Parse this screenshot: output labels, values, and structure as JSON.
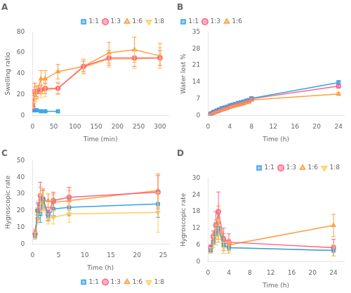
{
  "chart_data": [
    {
      "type": "line",
      "title": "A",
      "x_label": "Time (min)",
      "y_label": "Swelling ratio",
      "xlim": [
        0,
        320
      ],
      "ylim": [
        0,
        80
      ],
      "xticks": [
        0,
        50,
        100,
        150,
        200,
        250,
        300
      ],
      "yticks": [
        0,
        20,
        40,
        60,
        80
      ],
      "grid": false,
      "legend": "upper right",
      "series": [
        {
          "name": "1:1",
          "marker": "square",
          "x": [
            1,
            5,
            10,
            20,
            30,
            60
          ],
          "values": [
            5,
            5,
            5,
            4,
            4,
            4
          ],
          "yerr": [
            1.5,
            1,
            1,
            1,
            1,
            1
          ]
        },
        {
          "name": "1:3",
          "marker": "circle",
          "x": [
            1,
            5,
            10,
            20,
            30,
            60,
            120,
            180,
            240,
            300
          ],
          "values": [
            8,
            23,
            23,
            25,
            26,
            26,
            47,
            55,
            55,
            55
          ],
          "yerr": [
            3,
            8,
            5,
            4,
            5,
            5,
            5,
            7,
            8,
            7
          ]
        },
        {
          "name": "1:6",
          "marker": "triangle-up",
          "x": [
            1,
            5,
            10,
            20,
            30,
            60,
            120,
            180,
            240,
            300
          ],
          "values": [
            12,
            20,
            22,
            35,
            35,
            42,
            47,
            60,
            63,
            57
          ],
          "yerr": [
            4,
            7,
            6,
            8,
            8,
            7,
            7,
            10,
            12,
            12
          ]
        },
        {
          "name": "1:8",
          "marker": "triangle-down",
          "x": [
            1,
            5,
            10,
            20,
            30,
            60,
            120,
            180,
            240,
            300
          ],
          "values": [
            10,
            20,
            23,
            22,
            24,
            26,
            46,
            54,
            54,
            55
          ],
          "yerr": [
            3,
            7,
            6,
            5,
            6,
            6,
            6,
            8,
            9,
            10
          ]
        }
      ]
    },
    {
      "type": "line",
      "title": "B",
      "x_label": "Time (h)",
      "y_label": "Water lost %",
      "xlim": [
        0,
        25
      ],
      "ylim": [
        0,
        35
      ],
      "xticks": [
        0,
        4,
        8,
        12,
        16,
        20,
        24
      ],
      "yticks": [
        0,
        7,
        14,
        21,
        28,
        35
      ],
      "grid": false,
      "legend": "upper left",
      "series": [
        {
          "name": "1:1",
          "marker": "square",
          "x": [
            0.5,
            1,
            1.5,
            2,
            2.5,
            3,
            3.5,
            4,
            4.5,
            5,
            5.5,
            6,
            6.5,
            7,
            7.5,
            8,
            24
          ],
          "values": [
            0.8,
            1.5,
            2.0,
            2.5,
            3.0,
            3.3,
            3.7,
            4.2,
            4.5,
            4.8,
            5.2,
            5.5,
            5.8,
            6.2,
            6.5,
            7.2,
            13.8
          ],
          "yerr": [
            0.2,
            0.3,
            0.3,
            0.3,
            0.3,
            0.3,
            0.4,
            0.4,
            0.4,
            0.4,
            0.5,
            0.5,
            0.5,
            0.5,
            0.5,
            0.6,
            0.8
          ]
        },
        {
          "name": "1:3",
          "marker": "circle",
          "x": [
            0.5,
            1,
            1.5,
            2,
            2.5,
            3,
            3.5,
            4,
            4.5,
            5,
            5.5,
            6,
            6.5,
            7,
            7.5,
            8,
            24
          ],
          "values": [
            0.7,
            1.3,
            1.8,
            2.2,
            2.7,
            3.0,
            3.4,
            3.9,
            4.2,
            4.5,
            4.8,
            5.1,
            5.4,
            5.8,
            6.1,
            7.0,
            12.3
          ],
          "yerr": [
            0.2,
            0.2,
            0.3,
            0.3,
            0.3,
            0.3,
            0.3,
            0.4,
            0.4,
            0.4,
            0.4,
            0.4,
            0.5,
            0.5,
            0.5,
            0.5,
            0.8
          ]
        },
        {
          "name": "1:6",
          "marker": "triangle-up",
          "x": [
            0.5,
            1,
            1.5,
            2,
            2.5,
            3,
            3.5,
            4,
            4.5,
            5,
            5.5,
            6,
            6.5,
            7,
            7.5,
            8,
            24
          ],
          "values": [
            0.5,
            1.0,
            1.5,
            1.9,
            2.3,
            2.6,
            3.0,
            3.5,
            3.8,
            4.1,
            4.4,
            4.7,
            5.0,
            5.4,
            5.7,
            6.5,
            9.0
          ],
          "yerr": [
            0.1,
            0.2,
            0.2,
            0.2,
            0.2,
            0.3,
            0.3,
            0.3,
            0.3,
            0.3,
            0.4,
            0.4,
            0.4,
            0.4,
            0.4,
            0.5,
            0.6
          ]
        }
      ]
    },
    {
      "type": "line",
      "title": "C",
      "x_label": "Time (h)",
      "y_label": "Hygroscopic rate",
      "xlim": [
        0,
        26
      ],
      "ylim": [
        0,
        50
      ],
      "xticks": [
        0,
        5,
        10,
        15,
        20,
        25
      ],
      "yticks": [
        0,
        10,
        20,
        30,
        40,
        50
      ],
      "grid": false,
      "legend": "lower right",
      "series": [
        {
          "name": "1:1",
          "marker": "square",
          "x": [
            0.5,
            1,
            1.5,
            2,
            3,
            4,
            7,
            24
          ],
          "values": [
            5,
            20,
            18,
            27,
            17,
            21,
            22,
            24
          ],
          "yerr": [
            2,
            4,
            5,
            5,
            3,
            4,
            5,
            8
          ]
        },
        {
          "name": "1:3",
          "marker": "circle",
          "x": [
            0.5,
            1,
            1.5,
            2,
            3,
            4,
            7,
            24
          ],
          "values": [
            6,
            20,
            29,
            27,
            18,
            26,
            28,
            31
          ],
          "yerr": [
            2,
            5,
            8,
            6,
            4,
            5,
            6,
            10
          ]
        },
        {
          "name": "1:6",
          "marker": "triangle-up",
          "x": [
            0.5,
            1,
            1.5,
            2,
            3,
            4,
            7,
            24
          ],
          "values": [
            7,
            18,
            27,
            26,
            26,
            25,
            26,
            32
          ],
          "yerr": [
            2,
            4,
            7,
            6,
            4,
            5,
            6,
            10
          ]
        },
        {
          "name": "1:8",
          "marker": "triangle-down",
          "x": [
            0.5,
            1,
            1.5,
            2,
            3,
            4,
            7,
            24
          ],
          "values": [
            5,
            15,
            24,
            25,
            15,
            16,
            18,
            19
          ],
          "yerr": [
            2,
            3,
            6,
            5,
            3,
            4,
            5,
            12
          ]
        }
      ]
    },
    {
      "type": "line",
      "title": "D",
      "x_label": "Time (h)",
      "y_label": "Hygroscopic rate",
      "xlim": [
        0,
        26
      ],
      "ylim": [
        0,
        30
      ],
      "xticks": [
        0,
        4,
        8,
        12,
        16,
        20,
        24
      ],
      "yticks": [
        0,
        6,
        12,
        18,
        24,
        30
      ],
      "grid": false,
      "legend": "upper right",
      "series": [
        {
          "name": "1:1",
          "marker": "square",
          "x": [
            0.5,
            1,
            1.5,
            2,
            3,
            4,
            24
          ],
          "values": [
            4,
            7,
            10,
            12,
            6,
            5,
            4
          ],
          "yerr": [
            1,
            2,
            4,
            5,
            3,
            2,
            2
          ]
        },
        {
          "name": "1:3",
          "marker": "circle",
          "x": [
            0.5,
            1,
            1.5,
            2,
            3,
            4,
            24
          ],
          "values": [
            5,
            9,
            13,
            18,
            8,
            7,
            5
          ],
          "yerr": [
            1,
            2,
            5,
            7,
            4,
            3,
            3
          ]
        },
        {
          "name": "1:6",
          "marker": "triangle-up",
          "x": [
            0.5,
            1,
            1.5,
            2,
            3,
            4,
            24
          ],
          "values": [
            4,
            8,
            11,
            14,
            7,
            6,
            13
          ],
          "yerr": [
            1,
            2,
            4,
            6,
            3,
            2,
            4
          ]
        },
        {
          "name": "1:8",
          "marker": "triangle-down",
          "x": [
            0.5,
            1,
            1.5,
            2,
            3,
            4,
            24
          ],
          "values": [
            4,
            7,
            9,
            11,
            5,
            5,
            4
          ],
          "yerr": [
            1,
            2,
            3,
            4,
            2,
            2,
            2
          ]
        }
      ]
    }
  ]
}
